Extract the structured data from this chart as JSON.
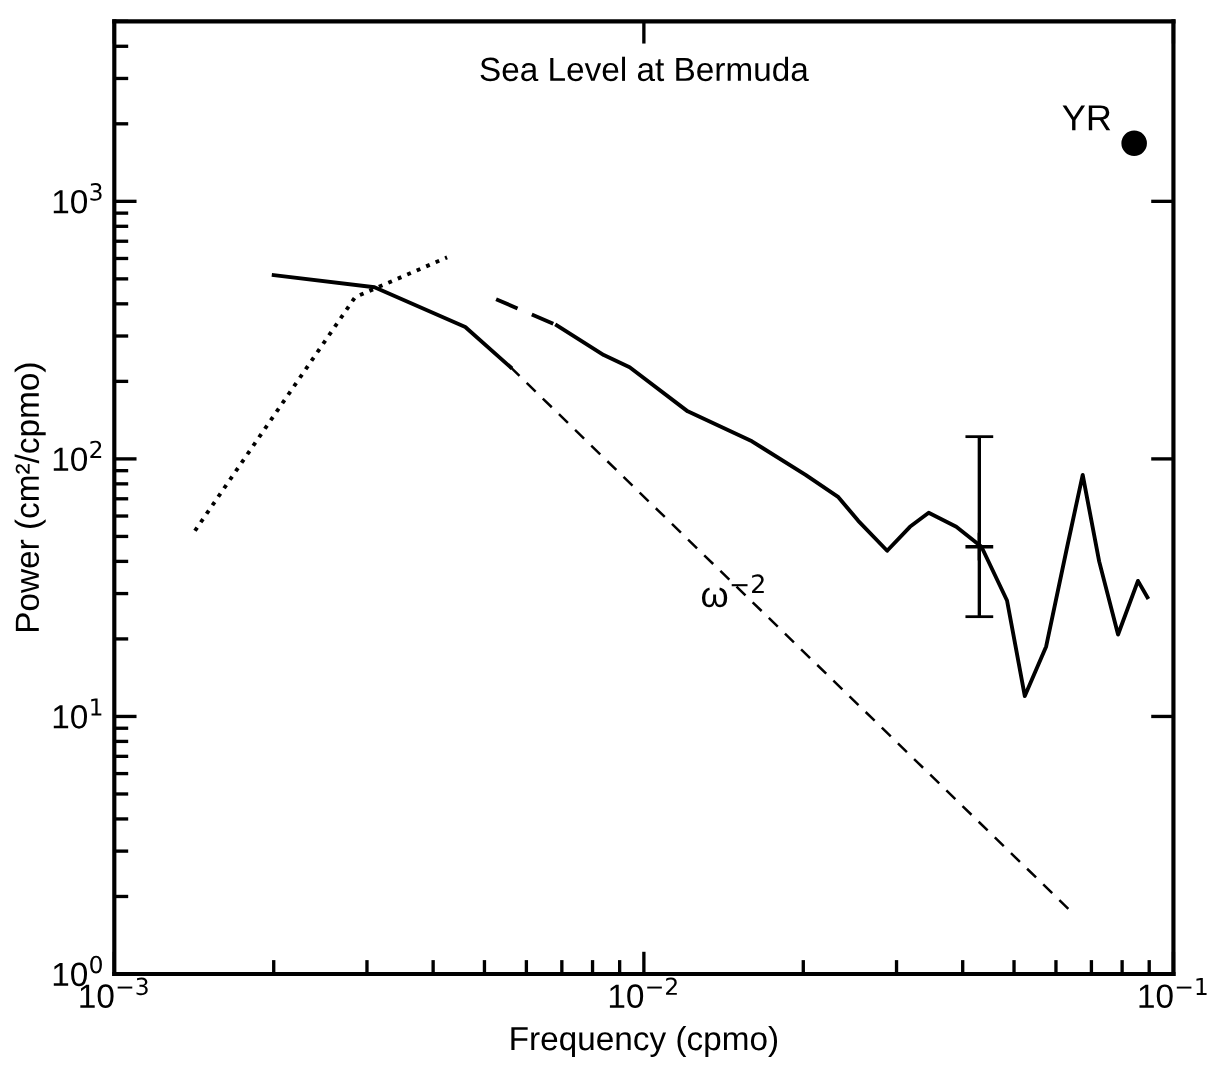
{
  "chart_data": {
    "type": "line",
    "title": "Sea Level at Bermuda",
    "xlabel": "Frequency (cpmo)",
    "ylabel": "Power (cm²/cpmo)",
    "log": "xy",
    "xlim": [
      0.001,
      0.1
    ],
    "ylim": [
      1,
      5000
    ],
    "xticks": [
      {
        "value": 0.001,
        "label": "10$^{−3}$"
      },
      {
        "value": 0.01,
        "label": "10$^{−2}$"
      },
      {
        "value": 0.1,
        "label": "10$^{−1}$"
      }
    ],
    "yticks": [
      {
        "value": 1,
        "label": "10$^{0}$"
      },
      {
        "value": 10,
        "label": "10$^{1}$"
      },
      {
        "value": 100,
        "label": "10$^{2}$"
      },
      {
        "value": 1000,
        "label": "10$^{3}$"
      }
    ],
    "grid": false,
    "marker": "none",
    "series": [
      {
        "color": "#000000",
        "line_style": "solid",
        "x": [
          0.002,
          0.0031,
          0.0046,
          0.0056
        ],
        "values": [
          517,
          464,
          325,
          227
        ]
      },
      {
        "color": "#000000",
        "line_style": "dashed",
        "x": [
          0.0056,
          0.0637
        ],
        "values": [
          227,
          1.77
        ]
      },
      {
        "color": "#000000",
        "line_style": "dotted",
        "x": [
          0.00142,
          0.00285,
          0.00425
        ],
        "values": [
          52.6,
          425,
          606
        ]
      },
      {
        "color": "#000000",
        "line_style": "dashed",
        "x": [
          0.00526,
          0.00685
        ],
        "values": [
          417,
          330
        ]
      },
      {
        "color": "#000000",
        "line_style": "solid",
        "x": [
          0.00685,
          0.0084,
          0.0094,
          0.0121,
          0.016,
          0.0202,
          0.0233,
          0.0254,
          0.0288,
          0.0318,
          0.0345,
          0.0389,
          0.0434,
          0.0485,
          0.0524,
          0.0575,
          0.063,
          0.0674,
          0.0724,
          0.0786,
          0.0857,
          0.0893
        ],
        "values": [
          330,
          253,
          227,
          153,
          117,
          86.7,
          71,
          57.5,
          44,
          54.5,
          61.8,
          54.5,
          45.6,
          28.2,
          12,
          18.7,
          45.6,
          86.7,
          40,
          20.8,
          33.6,
          29
        ]
      },
      {
        "type": "scatter",
        "color": "#000000",
        "marker": "cross",
        "x": [
          0.043
        ],
        "values": [
          45.6
        ],
        "errors": [
          [
            24.4,
            122
          ]
        ]
      },
      {
        "type": "scatter",
        "color": "#000000",
        "marker": "circle",
        "x": [
          0.0843
        ],
        "values": [
          1680
        ]
      }
    ],
    "annotations": [
      {
        "text": "YR",
        "x": 0.0843,
        "y": 1680
      },
      "ω$^{−2}$"
    ]
  }
}
